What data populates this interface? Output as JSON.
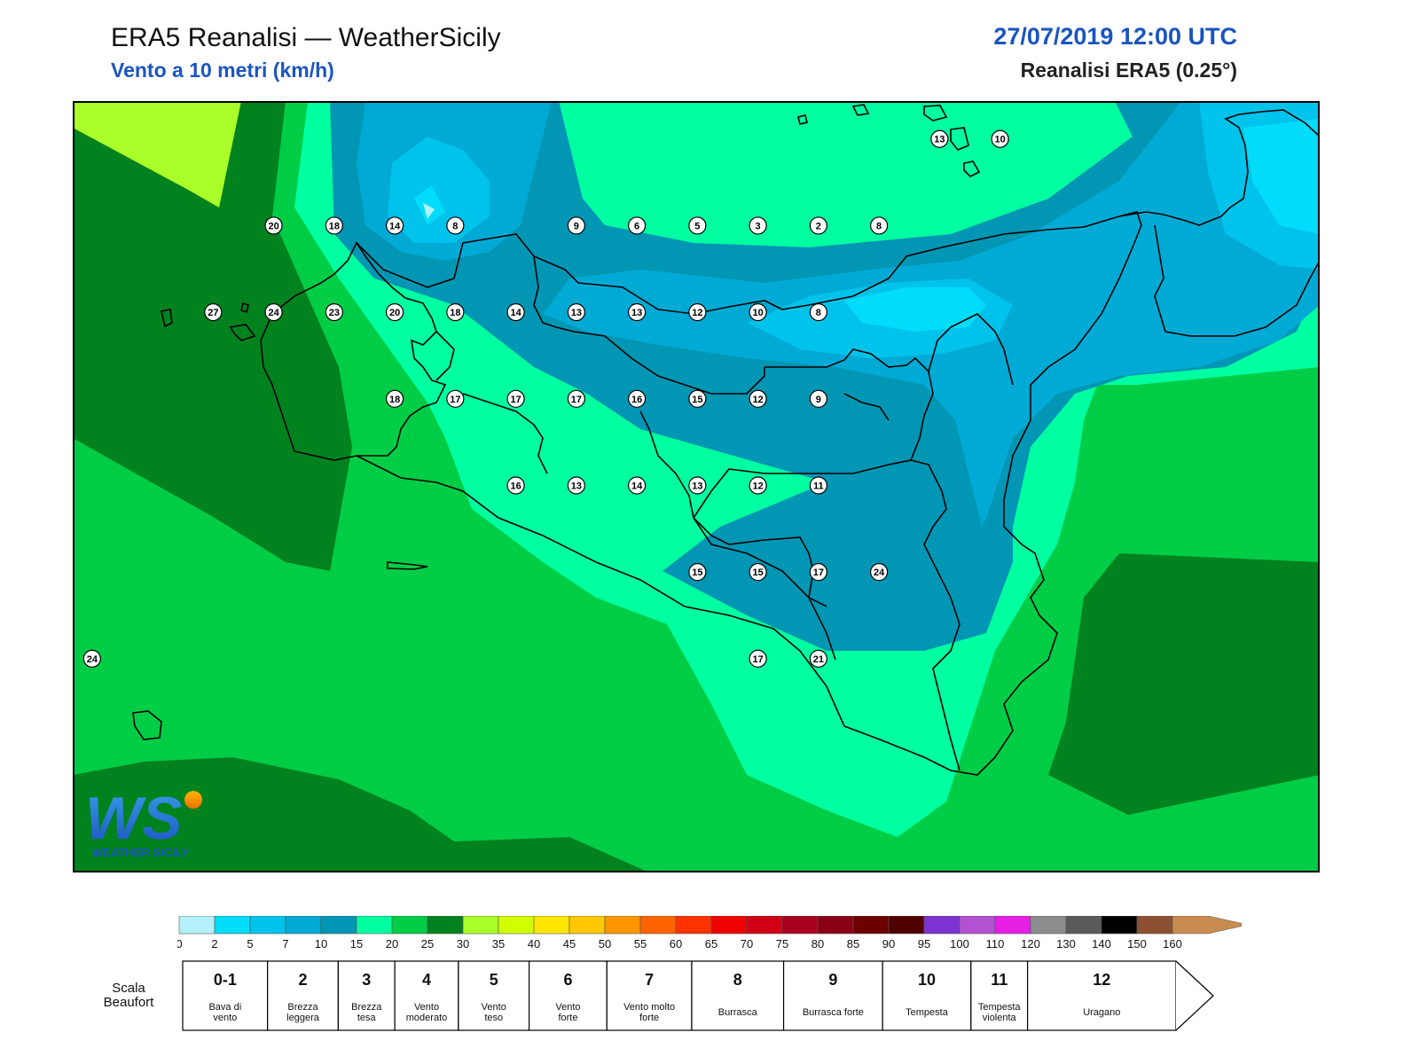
{
  "header": {
    "title": "ERA5 Reanalisi — WeatherSicily",
    "subtitle": "Vento a 10 metri (km/h)",
    "datetime": "27/07/2019 12:00 UTC",
    "source": "Reanalisi ERA5 (0.25°)"
  },
  "logo": {
    "monogram": "WS",
    "text": "WEATHER SICILY"
  },
  "stations": [
    {
      "v": "13",
      "lon": 15.43,
      "lat": 38.61
    },
    {
      "v": "10",
      "lon": 15.68,
      "lat": 38.61
    },
    {
      "v": "20",
      "lon": 12.68,
      "lat": 38.29
    },
    {
      "v": "18",
      "lon": 12.93,
      "lat": 38.29
    },
    {
      "v": "14",
      "lon": 13.18,
      "lat": 38.29
    },
    {
      "v": "8",
      "lon": 13.43,
      "lat": 38.29
    },
    {
      "v": "9",
      "lon": 13.93,
      "lat": 38.29
    },
    {
      "v": "6",
      "lon": 14.18,
      "lat": 38.29
    },
    {
      "v": "5",
      "lon": 14.43,
      "lat": 38.29
    },
    {
      "v": "3",
      "lon": 14.68,
      "lat": 38.29
    },
    {
      "v": "2",
      "lon": 14.93,
      "lat": 38.29
    },
    {
      "v": "8",
      "lon": 15.18,
      "lat": 38.29
    },
    {
      "v": "27",
      "lon": 12.43,
      "lat": 37.97
    },
    {
      "v": "24",
      "lon": 12.68,
      "lat": 37.97
    },
    {
      "v": "23",
      "lon": 12.93,
      "lat": 37.97
    },
    {
      "v": "20",
      "lon": 13.18,
      "lat": 37.97
    },
    {
      "v": "18",
      "lon": 13.43,
      "lat": 37.97
    },
    {
      "v": "14",
      "lon": 13.68,
      "lat": 37.97
    },
    {
      "v": "13",
      "lon": 13.93,
      "lat": 37.97
    },
    {
      "v": "13",
      "lon": 14.18,
      "lat": 37.97
    },
    {
      "v": "12",
      "lon": 14.43,
      "lat": 37.97
    },
    {
      "v": "10",
      "lon": 14.68,
      "lat": 37.97
    },
    {
      "v": "8",
      "lon": 14.93,
      "lat": 37.97
    },
    {
      "v": "18",
      "lon": 13.18,
      "lat": 37.65
    },
    {
      "v": "17",
      "lon": 13.43,
      "lat": 37.65
    },
    {
      "v": "17",
      "lon": 13.68,
      "lat": 37.65
    },
    {
      "v": "17",
      "lon": 13.93,
      "lat": 37.65
    },
    {
      "v": "16",
      "lon": 14.18,
      "lat": 37.65
    },
    {
      "v": "15",
      "lon": 14.43,
      "lat": 37.65
    },
    {
      "v": "12",
      "lon": 14.68,
      "lat": 37.65
    },
    {
      "v": "9",
      "lon": 14.93,
      "lat": 37.65
    },
    {
      "v": "16",
      "lon": 13.68,
      "lat": 37.33
    },
    {
      "v": "13",
      "lon": 13.93,
      "lat": 37.33
    },
    {
      "v": "14",
      "lon": 14.18,
      "lat": 37.33
    },
    {
      "v": "13",
      "lon": 14.43,
      "lat": 37.33
    },
    {
      "v": "12",
      "lon": 14.68,
      "lat": 37.33
    },
    {
      "v": "11",
      "lon": 14.93,
      "lat": 37.33
    },
    {
      "v": "15",
      "lon": 14.43,
      "lat": 37.01
    },
    {
      "v": "15",
      "lon": 14.68,
      "lat": 37.01
    },
    {
      "v": "17",
      "lon": 14.93,
      "lat": 37.01
    },
    {
      "v": "24",
      "lon": 15.18,
      "lat": 37.01
    },
    {
      "v": "17",
      "lon": 14.68,
      "lat": 36.69
    },
    {
      "v": "21",
      "lon": 14.93,
      "lat": 36.69
    },
    {
      "v": "24",
      "lon": 11.93,
      "lat": 36.69
    }
  ],
  "colorbar": {
    "unit": "km/h",
    "colors": [
      "#b4f0fa",
      "#00dcfa",
      "#00c3eb",
      "#00aad5",
      "#0096b4",
      "#00ffa0",
      "#00cd46",
      "#00821e",
      "#aaff28",
      "#d2ff00",
      "#ffe600",
      "#ffc800",
      "#ff9600",
      "#ff6400",
      "#ff3200",
      "#f00000",
      "#d20014",
      "#aa001e",
      "#8c0014",
      "#6e0000",
      "#500000",
      "#7d32d2",
      "#b450d2",
      "#e61ee6",
      "#8c8c8c",
      "#5a5a5a",
      "#000000",
      "#8c5032",
      "#c88c50"
    ],
    "ticks": [
      "0",
      "2",
      "5",
      "7",
      "10",
      "15",
      "20",
      "25",
      "30",
      "35",
      "40",
      "45",
      "50",
      "55",
      "60",
      "65",
      "70",
      "75",
      "80",
      "85",
      "90",
      "95",
      "100",
      "110",
      "120",
      "130",
      "140",
      "150",
      "160"
    ]
  },
  "beaufort": {
    "label": "Scala Beaufort",
    "items": [
      {
        "n": "0-1",
        "d": "Bava di vento",
        "w": 1.2
      },
      {
        "n": "2",
        "d": "Brezza leggera",
        "w": 1
      },
      {
        "n": "3",
        "d": "Brezza tesa",
        "w": 0.8
      },
      {
        "n": "4",
        "d": "Vento moderato",
        "w": 0.9
      },
      {
        "n": "5",
        "d": "Vento teso",
        "w": 1
      },
      {
        "n": "6",
        "d": "Vento forte",
        "w": 1.1
      },
      {
        "n": "7",
        "d": "Vento molto forte",
        "w": 1.2
      },
      {
        "n": "8",
        "d": "Burrasca",
        "w": 1.3
      },
      {
        "n": "9",
        "d": "Burrasca forte",
        "w": 1.4
      },
      {
        "n": "10",
        "d": "Tempesta",
        "w": 1.25
      },
      {
        "n": "11",
        "d": "Tempesta violenta",
        "w": 0.8
      },
      {
        "n": "12",
        "d": "Uragano",
        "w": 2.1
      }
    ]
  }
}
